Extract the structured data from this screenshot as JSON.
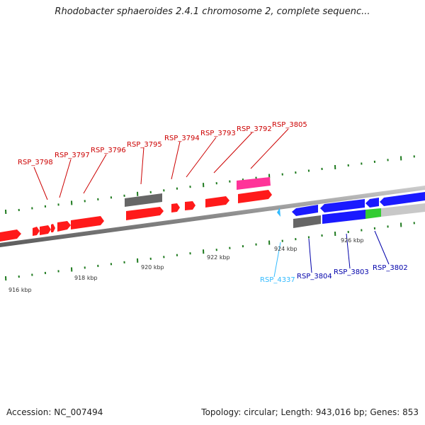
{
  "title": "Rhodobacter sphaeroides 2.4.1 chromosome 2, complete sequenc...",
  "footer": {
    "accession": "Accession: NC_007494",
    "summary": "Topology: circular; Length: 943,016 bp; Genes: 853"
  },
  "colors": {
    "forward_gene": "#ff1a1a",
    "reverse_gene": "#1a1aff",
    "rna_gene": "#ff3399",
    "pseudo_gene": "#666666",
    "hypothetical": "#33cc33",
    "backbone": "#8c8c8c",
    "tick": "#1e7a1e",
    "small_gene": "#33bbff"
  },
  "ticks": [
    "916 kbp",
    "918 kbp",
    "920 kbp",
    "922 kbp",
    "924 kbp",
    "926 kbp"
  ],
  "genes": [
    {
      "id": "RSP_3798",
      "color": "#cc0000"
    },
    {
      "id": "RSP_3797",
      "color": "#cc0000"
    },
    {
      "id": "RSP_3796",
      "color": "#cc0000"
    },
    {
      "id": "RSP_3795",
      "color": "#cc0000"
    },
    {
      "id": "RSP_3794",
      "color": "#cc0000"
    },
    {
      "id": "RSP_3793",
      "color": "#cc0000"
    },
    {
      "id": "RSP_3792",
      "color": "#cc0000"
    },
    {
      "id": "RSP_3805",
      "color": "#cc0000"
    },
    {
      "id": "RSP_4337",
      "color": "#33bbff"
    },
    {
      "id": "RSP_3804",
      "color": "#0000aa"
    },
    {
      "id": "RSP_3803",
      "color": "#0000aa"
    },
    {
      "id": "RSP_3802",
      "color": "#0000aa"
    }
  ]
}
